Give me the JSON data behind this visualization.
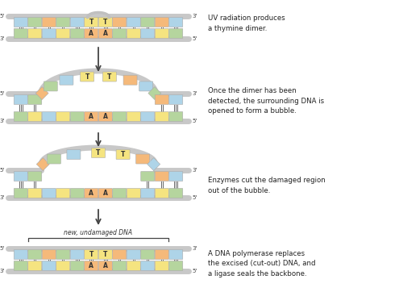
{
  "background": "#ffffff",
  "annotations": [
    "UV radiation produces\na thymine dimer.",
    "Once the dimer has been\ndetected, the surrounding DNA is\nopened to form a bubble.",
    "Enzymes cut the damaged region\nout of the bubble.",
    "A DNA polymerase replaces\nthe excised (cut-out) DNA, and\na ligase seals the backbone."
  ],
  "arrow_label": "new, undamaged DNA",
  "colors": {
    "blue": "#aed4e8",
    "green": "#b5d59e",
    "orange": "#f5b97a",
    "yellow": "#f5e480",
    "backbone": "#c8c8c8",
    "bond": "#666666",
    "text": "#333333"
  },
  "figsize": [
    5.0,
    3.57
  ],
  "dpi": 100
}
